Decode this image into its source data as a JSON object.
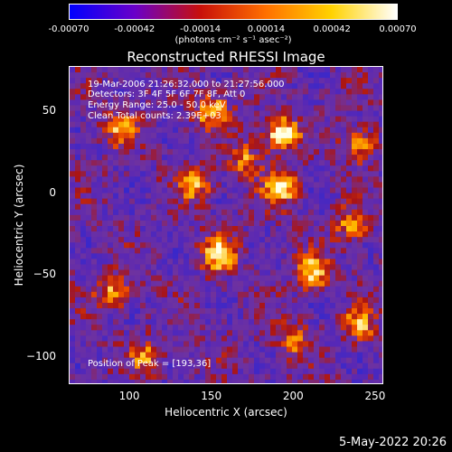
{
  "colorbar": {
    "min": -0.0007,
    "max": 0.0007,
    "tick_labels": [
      "-0.00070",
      "-0.00042",
      "-0.00014",
      "0.00014",
      "0.00042",
      "0.00070"
    ],
    "unit_label": "(photons cm⁻² s⁻¹ asec⁻²)",
    "colors": [
      "#0000ff",
      "#6a00c8",
      "#c8100a",
      "#ff7000",
      "#ffd200",
      "#ffffff"
    ]
  },
  "chart_data": {
    "type": "heatmap",
    "title": "Reconstructed RHESSI Image",
    "xlabel": "Heliocentric X (arcsec)",
    "ylabel": "Heliocentric Y (arcsec)",
    "xlim": [
      63,
      255
    ],
    "ylim": [
      -117,
      77
    ],
    "x_ticks": [
      100,
      150,
      200,
      250
    ],
    "y_ticks": [
      50,
      0,
      -50,
      -100
    ],
    "x_tick_labels": [
      "100",
      "150",
      "200",
      "250"
    ],
    "y_tick_labels": [
      "50",
      "0",
      "−50",
      "−100"
    ],
    "peak_position": [
      193,
      36
    ],
    "bright_sources": [
      {
        "x": 193,
        "y": 36,
        "level": 1.0
      },
      {
        "x": 154,
        "y": -37,
        "level": 0.85
      },
      {
        "x": 192,
        "y": 3,
        "level": 0.8
      },
      {
        "x": 212,
        "y": -48,
        "level": 0.8
      },
      {
        "x": 95,
        "y": 40,
        "level": 0.7
      },
      {
        "x": 150,
        "y": 50,
        "level": 0.7
      },
      {
        "x": 240,
        "y": 30,
        "level": 0.65
      },
      {
        "x": 90,
        "y": -60,
        "level": 0.6
      },
      {
        "x": 140,
        "y": 5,
        "level": 0.6
      },
      {
        "x": 170,
        "y": 20,
        "level": 0.55
      },
      {
        "x": 235,
        "y": -20,
        "level": 0.6
      },
      {
        "x": 200,
        "y": -90,
        "level": 0.55
      },
      {
        "x": 110,
        "y": -100,
        "level": 0.5
      },
      {
        "x": 240,
        "y": -80,
        "level": 0.6
      }
    ]
  },
  "info": {
    "time_range": "19-Mar-2006 21:26:32.000 to 21:27:56.000",
    "detectors": "Detectors: 3F 4F 5F 6F 7F 8F, Att 0",
    "energy_range": "Energy Range: 25.0 - 50.0 keV",
    "algorithm_counts": "Clean     Total counts: 2.39E+03",
    "peak_text": "Position of Peak = [193,36]"
  },
  "footer": {
    "date": "5-May-2022 20:26"
  }
}
